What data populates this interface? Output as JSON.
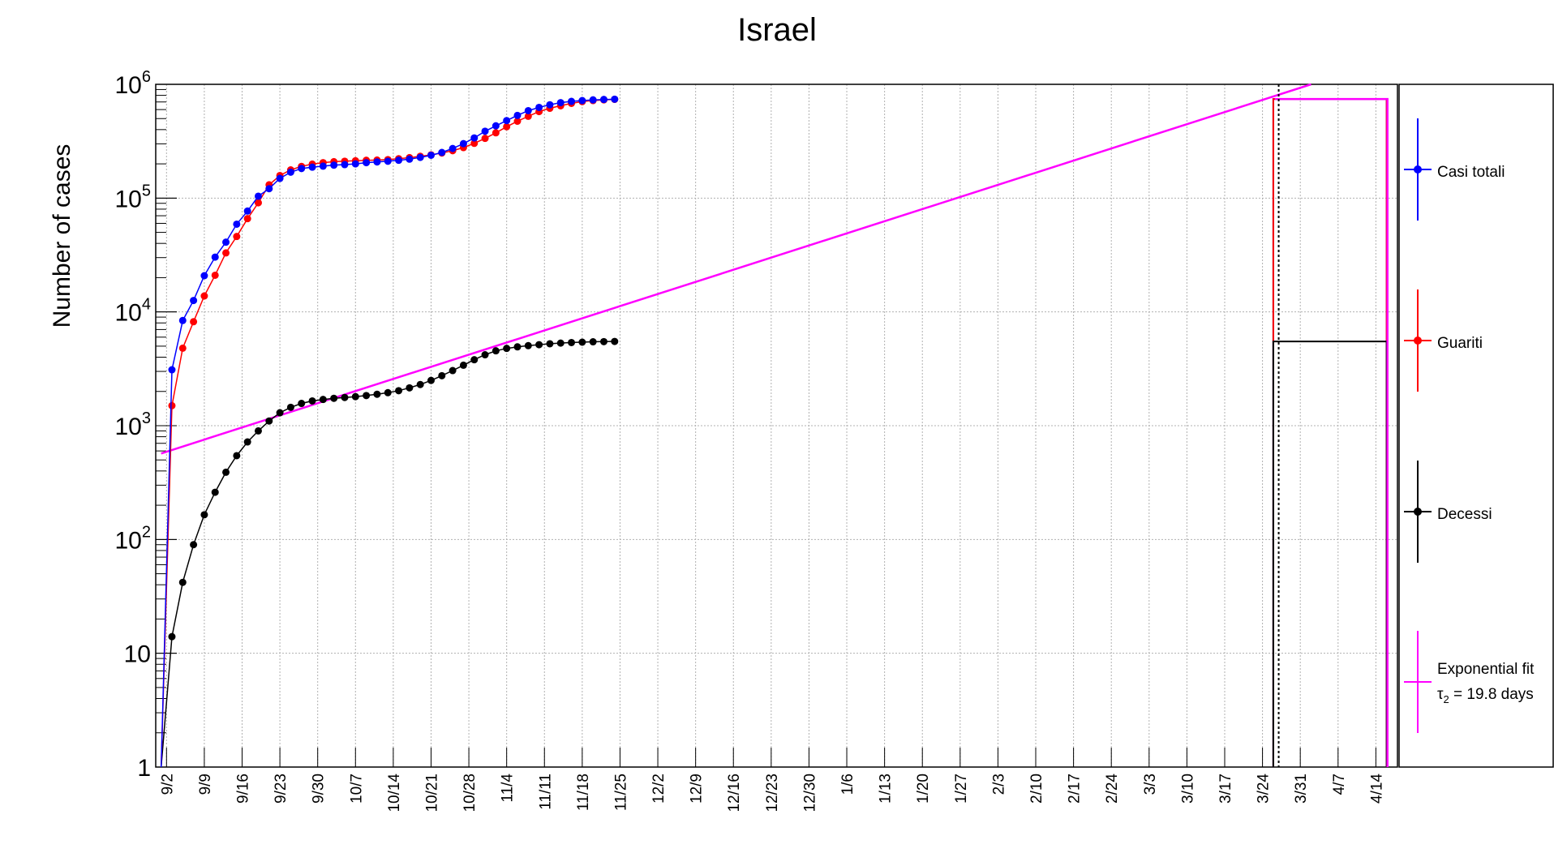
{
  "chart_data": {
    "type": "scatter",
    "title": "Israel",
    "xlabel": "",
    "ylabel": "Number of cases",
    "yscale": "log",
    "ylim": [
      1,
      1000000
    ],
    "xlim_days": [
      -1,
      229
    ],
    "grid": true,
    "legend_position": "right",
    "y_tick_labels": [
      {
        "value": 1,
        "label": "1",
        "sup": ""
      },
      {
        "value": 10,
        "label": "10",
        "sup": ""
      },
      {
        "value": 100,
        "label": "10",
        "sup": "2"
      },
      {
        "value": 1000,
        "label": "10",
        "sup": "3"
      },
      {
        "value": 10000,
        "label": "10",
        "sup": "4"
      },
      {
        "value": 100000,
        "label": "10",
        "sup": "5"
      },
      {
        "value": 1000000,
        "label": "10",
        "sup": "6"
      }
    ],
    "x_tick_labels": [
      "9/2",
      "9/9",
      "9/16",
      "9/23",
      "9/30",
      "10/7",
      "10/14",
      "10/21",
      "10/28",
      "11/4",
      "11/11",
      "11/18",
      "11/25",
      "12/2",
      "12/9",
      "12/16",
      "12/23",
      "12/30",
      "1/6",
      "1/13",
      "1/20",
      "1/27",
      "2/3",
      "2/10",
      "2/17",
      "2/24",
      "3/3",
      "3/10",
      "3/17",
      "3/24",
      "3/31",
      "4/7",
      "4/14"
    ],
    "x_tick_days": [
      1,
      8,
      15,
      22,
      29,
      36,
      43,
      50,
      57,
      64,
      71,
      78,
      85,
      92,
      99,
      106,
      113,
      120,
      127,
      134,
      141,
      148,
      155,
      162,
      169,
      176,
      183,
      190,
      197,
      204,
      211,
      218,
      225
    ],
    "series_x_start": 0,
    "series_x_step": 2,
    "series": [
      {
        "name": "Casi totali",
        "color": "#0000ff",
        "values": [
          0.8,
          3100,
          8400,
          12600,
          20800,
          30300,
          41000,
          59000,
          77000,
          104000,
          121000,
          149000,
          169000,
          182000,
          187000,
          191000,
          195000,
          197000,
          200000,
          205000,
          208000,
          211000,
          215000,
          220000,
          228000,
          238000,
          252000,
          273000,
          301000,
          338000,
          387000,
          432000,
          480000,
          533000,
          587000,
          627000,
          661000,
          690000,
          708000,
          720000,
          730000,
          736000,
          740000
        ]
      },
      {
        "name": "Guariti",
        "color": "#ff0000",
        "values": [
          0.8,
          1500,
          4800,
          8200,
          13800,
          21000,
          33000,
          46000,
          66000,
          91000,
          131000,
          158000,
          177000,
          190000,
          199000,
          205000,
          209000,
          211000,
          213000,
          215000,
          216000,
          218000,
          222000,
          227000,
          233000,
          240000,
          249000,
          261000,
          278000,
          303000,
          335000,
          375000,
          424000,
          474000,
          524000,
          576000,
          616000,
          648000,
          680000,
          705000,
          720000,
          730000,
          738000
        ]
      },
      {
        "name": "Decessi",
        "color": "#000000",
        "values": [
          0.8,
          14,
          42,
          90,
          165,
          260,
          390,
          545,
          720,
          900,
          1100,
          1300,
          1450,
          1570,
          1650,
          1700,
          1740,
          1770,
          1800,
          1840,
          1890,
          1950,
          2030,
          2150,
          2300,
          2500,
          2750,
          3050,
          3400,
          3800,
          4200,
          4550,
          4780,
          4930,
          5050,
          5150,
          5250,
          5320,
          5380,
          5420,
          5460,
          5480,
          5500
        ]
      }
    ],
    "fit": {
      "name": "Exponential fit",
      "name_line2_symbol": "τ",
      "name_line2_sub": "2",
      "name_line2_rest": " = 19.8 days",
      "color": "#ff00ff",
      "day_start": 0,
      "value_start": 570,
      "day_end": 213,
      "value_end": 1000000
    },
    "step_tail": {
      "day_from": 206,
      "day_to": 227,
      "series_values": {
        "Casi totali": 742000,
        "Guariti": 742000,
        "Decessi": 5500
      },
      "fit_value": 742000
    },
    "marker_line_day": 207
  }
}
